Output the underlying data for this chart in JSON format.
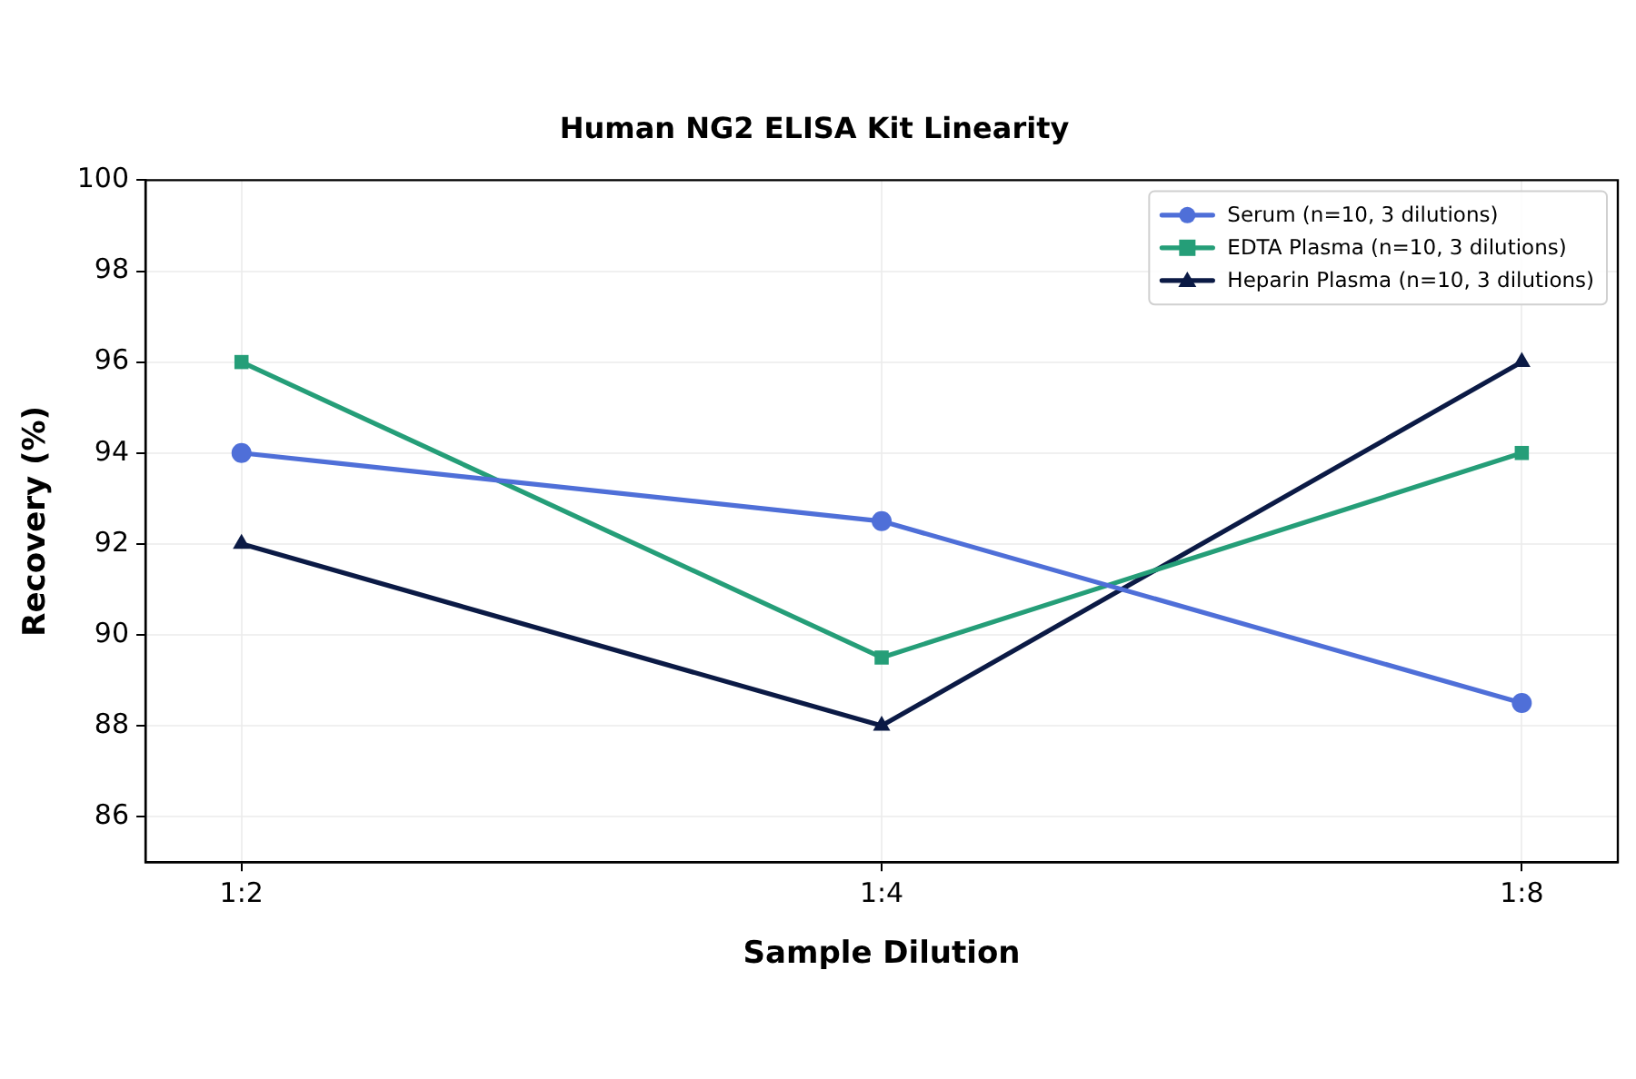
{
  "chart_data": {
    "type": "line",
    "title": "Human NG2 ELISA Kit Linearity",
    "xlabel": "Sample Dilution",
    "ylabel": "Recovery (%)",
    "categories": [
      "1:2",
      "1:4",
      "1:8"
    ],
    "series": [
      {
        "name": "Serum (n=10, 3 dilutions)",
        "color": "#4f6fd8",
        "marker": "circle",
        "values": [
          94,
          92.5,
          88.5
        ]
      },
      {
        "name": "EDTA Plasma (n=10, 3 dilutions)",
        "color": "#259e78",
        "marker": "square",
        "values": [
          96,
          89.5,
          94
        ]
      },
      {
        "name": "Heparin Plasma (n=10, 3 dilutions)",
        "color": "#0b1a45",
        "marker": "triangle",
        "values": [
          92,
          88,
          96
        ]
      }
    ],
    "ylim": [
      85,
      100
    ],
    "yticks": [
      86,
      88,
      90,
      92,
      94,
      96,
      98,
      100
    ],
    "grid": true,
    "legend": "top right",
    "line_style": "solid"
  }
}
